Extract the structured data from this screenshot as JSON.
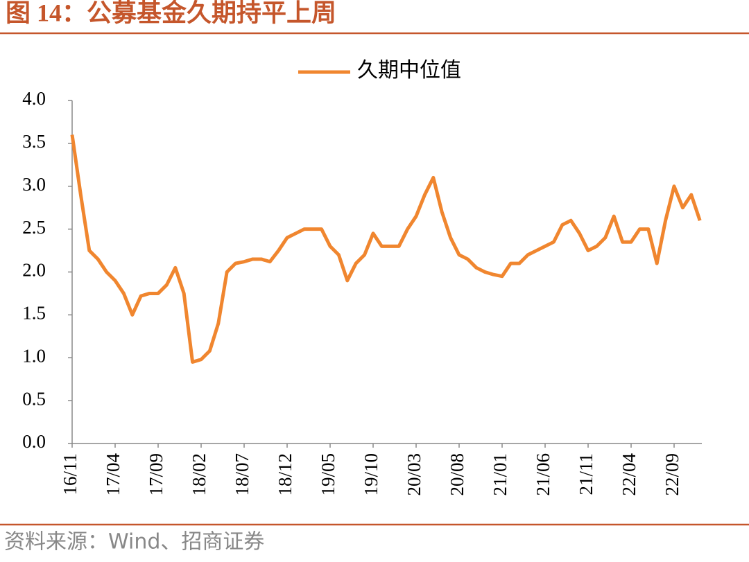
{
  "title": "图 14：公募基金久期持平上周",
  "source": "资料来源：Wind、招商证券",
  "chart_data": {
    "type": "line",
    "x": [
      "16/11",
      "16/12",
      "17/01",
      "17/02",
      "17/03",
      "17/04",
      "17/05",
      "17/06",
      "17/07",
      "17/08",
      "17/09",
      "17/10",
      "17/11",
      "17/12",
      "18/01",
      "18/02",
      "18/03",
      "18/04",
      "18/05",
      "18/06",
      "18/07",
      "18/08",
      "18/09",
      "18/10",
      "18/11",
      "18/12",
      "19/01",
      "19/02",
      "19/03",
      "19/04",
      "19/05",
      "19/06",
      "19/07",
      "19/08",
      "19/09",
      "19/10",
      "19/11",
      "19/12",
      "20/01",
      "20/02",
      "20/03",
      "20/04",
      "20/05",
      "20/06",
      "20/07",
      "20/08",
      "20/09",
      "20/10",
      "20/11",
      "20/12",
      "21/01",
      "21/02",
      "21/03",
      "21/04",
      "21/05",
      "21/06",
      "21/07",
      "21/08",
      "21/09",
      "21/10",
      "21/11",
      "21/12",
      "22/01",
      "22/02",
      "22/03",
      "22/04",
      "22/05",
      "22/06",
      "22/07",
      "22/08",
      "22/09",
      "22/10",
      "22/11",
      "22/12"
    ],
    "series": [
      {
        "name": "久期中位值",
        "color": "#f0862f",
        "values": [
          3.6,
          2.9,
          2.25,
          2.15,
          2.0,
          1.9,
          1.75,
          1.5,
          1.72,
          1.75,
          1.75,
          1.85,
          2.05,
          1.75,
          0.95,
          0.98,
          1.08,
          1.4,
          2.0,
          2.1,
          2.12,
          2.15,
          2.15,
          2.12,
          2.25,
          2.4,
          2.45,
          2.5,
          2.5,
          2.5,
          2.3,
          2.2,
          1.9,
          2.1,
          2.2,
          2.45,
          2.3,
          2.3,
          2.3,
          2.5,
          2.65,
          2.9,
          3.1,
          2.7,
          2.4,
          2.2,
          2.15,
          2.05,
          2.0,
          1.97,
          1.95,
          2.1,
          2.1,
          2.2,
          2.25,
          2.3,
          2.35,
          2.55,
          2.6,
          2.45,
          2.25,
          2.3,
          2.4,
          2.65,
          2.35,
          2.35,
          2.5,
          2.5,
          2.1,
          2.6,
          3.0,
          2.75,
          2.9,
          2.6
        ]
      }
    ],
    "xticks": [
      "16/11",
      "17/04",
      "17/09",
      "18/02",
      "18/07",
      "18/12",
      "19/05",
      "19/10",
      "20/03",
      "20/08",
      "21/01",
      "21/06",
      "21/11",
      "22/04",
      "22/09"
    ],
    "ylim": [
      0,
      4
    ],
    "yticks": [
      {
        "value": 0,
        "label": "0.0"
      },
      0.5,
      {
        "value": 1,
        "label": "1.0"
      },
      1.5,
      {
        "value": 2,
        "label": "2.0"
      },
      2.5,
      {
        "value": 3,
        "label": "3.0"
      },
      3.5,
      {
        "value": 4,
        "label": "4.0"
      }
    ],
    "legend": "top"
  }
}
